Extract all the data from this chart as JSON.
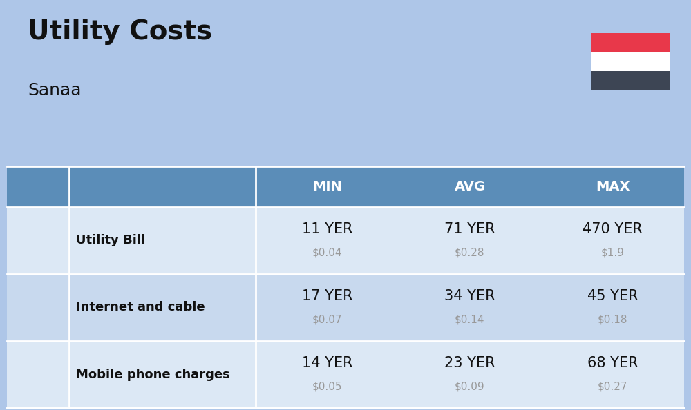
{
  "title": "Utility Costs",
  "subtitle": "Sanaa",
  "background_color": "#aec6e8",
  "header_bg_color": "#5b8db8",
  "header_text_color": "#ffffff",
  "row_bg_color_1": "#dce8f5",
  "row_bg_color_2": "#c8d9ee",
  "divider_color": "#ffffff",
  "columns": [
    "MIN",
    "AVG",
    "MAX"
  ],
  "rows": [
    {
      "name": "Utility Bill",
      "min_yer": "11 YER",
      "min_usd": "$0.04",
      "avg_yer": "71 YER",
      "avg_usd": "$0.28",
      "max_yer": "470 YER",
      "max_usd": "$1.9"
    },
    {
      "name": "Internet and cable",
      "min_yer": "17 YER",
      "min_usd": "$0.07",
      "avg_yer": "34 YER",
      "avg_usd": "$0.14",
      "max_yer": "45 YER",
      "max_usd": "$0.18"
    },
    {
      "name": "Mobile phone charges",
      "min_yer": "14 YER",
      "min_usd": "$0.05",
      "avg_yer": "23 YER",
      "avg_usd": "$0.09",
      "max_yer": "68 YER",
      "max_usd": "$0.27"
    }
  ],
  "flag_red": "#e8384a",
  "flag_white": "#ffffff",
  "flag_black": "#3d4554",
  "title_fontsize": 28,
  "subtitle_fontsize": 18,
  "header_fontsize": 14,
  "name_fontsize": 13,
  "value_fontsize": 15,
  "usd_fontsize": 11,
  "text_color_dark": "#111111",
  "text_color_gray": "#999999"
}
